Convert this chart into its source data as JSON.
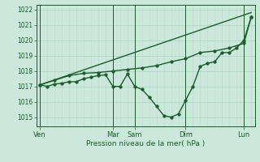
{
  "title": "",
  "xlabel": "Pression niveau de la mer( hPa )",
  "ylabel": "",
  "bg_color": "#cce8dd",
  "grid_color_h": "#aed4c6",
  "grid_color_v": "#b8ddd0",
  "line_color": "#1a5c2a",
  "ylim": [
    1014.4,
    1022.3
  ],
  "yticks": [
    1015,
    1016,
    1017,
    1018,
    1019,
    1020,
    1021,
    1022
  ],
  "day_labels": [
    "Ven",
    "Mar",
    "Sam",
    "Dim",
    "Lun"
  ],
  "day_x": [
    0,
    10,
    13,
    20,
    28
  ],
  "xlim": [
    -0.5,
    29.5
  ],
  "num_vcols": 30,
  "trend_x": [
    0,
    29
  ],
  "trend_y": [
    1017.1,
    1021.8
  ],
  "series1_x": [
    0,
    1,
    2,
    3,
    4,
    5,
    6,
    7,
    8,
    9,
    10,
    11,
    12,
    13,
    14,
    15,
    16,
    17,
    18,
    19,
    20,
    21,
    22,
    23,
    24,
    25,
    26,
    27,
    28,
    29
  ],
  "series1_y": [
    1017.1,
    1017.0,
    1017.15,
    1017.2,
    1017.3,
    1017.3,
    1017.5,
    1017.6,
    1017.7,
    1017.75,
    1017.0,
    1017.0,
    1017.8,
    1017.0,
    1016.8,
    1016.3,
    1015.7,
    1015.1,
    1015.0,
    1015.2,
    1016.1,
    1017.0,
    1018.3,
    1018.5,
    1018.6,
    1019.2,
    1019.2,
    1019.5,
    1020.0,
    1021.5
  ],
  "series2_x": [
    0,
    2,
    4,
    6,
    8,
    10,
    12,
    14,
    16,
    18,
    20,
    22,
    24,
    26,
    28,
    29
  ],
  "series2_y": [
    1017.1,
    1017.4,
    1017.7,
    1017.85,
    1017.9,
    1018.0,
    1018.1,
    1018.2,
    1018.35,
    1018.6,
    1018.8,
    1019.2,
    1019.3,
    1019.5,
    1019.8,
    1021.5
  ],
  "marker_size": 2.5,
  "line_width": 1.0
}
